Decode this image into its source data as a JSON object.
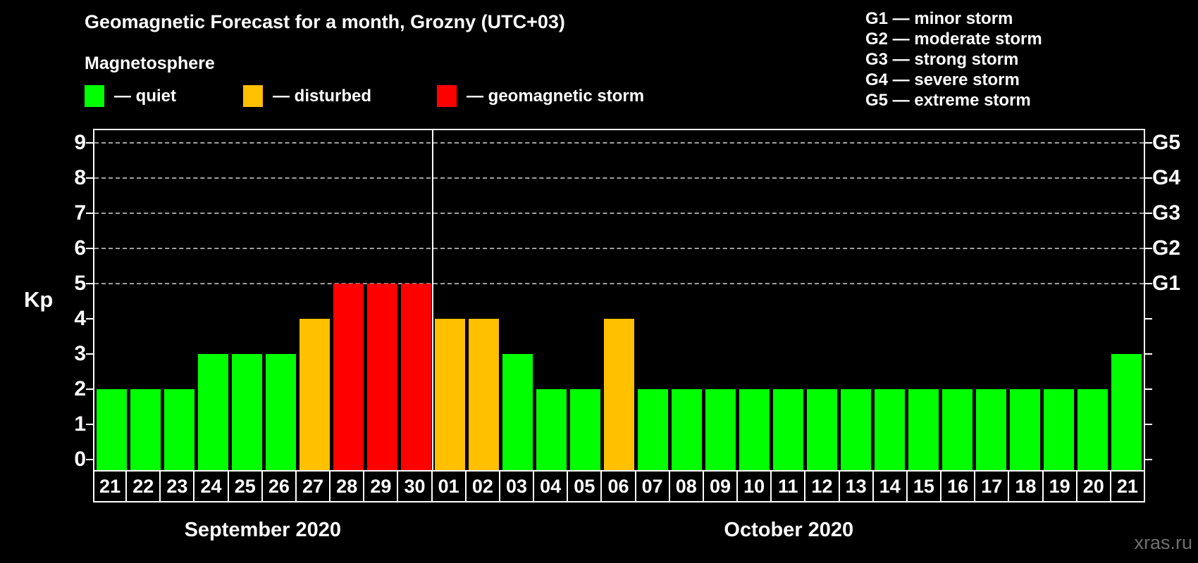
{
  "title": "Geomagnetic Forecast for a month, Grozny (UTC+03)",
  "subtitle": "Magnetosphere",
  "watermark": "xras.ru",
  "legend": [
    {
      "key": "quiet",
      "label": "— quiet"
    },
    {
      "key": "disturbed",
      "label": "— disturbed"
    },
    {
      "key": "storm",
      "label": "— geomagnetic storm"
    }
  ],
  "g_legend": [
    "G1 — minor storm",
    "G2 — moderate storm",
    "G3 — strong storm",
    "G4 — severe storm",
    "G5 — extreme storm"
  ],
  "colors": {
    "quiet": "#00ff00",
    "disturbed": "#ffc000",
    "storm": "#ff0000",
    "background": "#000000",
    "text": "#ffffff",
    "gridline": "#a0a0a0"
  },
  "chart_data": {
    "type": "bar",
    "title": "Geomagnetic Forecast for a month, Grozny (UTC+03)",
    "ylabel": "Kp",
    "ylim": [
      0,
      9
    ],
    "y_ticks": [
      0,
      1,
      2,
      3,
      4,
      5,
      6,
      7,
      8,
      9
    ],
    "gridlines_at": [
      5,
      6,
      7,
      8,
      9
    ],
    "grid_style": "dashed, only at storm levels",
    "right_axis_labels": {
      "5": "G1",
      "6": "G2",
      "7": "G3",
      "8": "G4",
      "9": "G5"
    },
    "legend_position": "top-left",
    "months": [
      {
        "name": "September 2020",
        "days": [
          {
            "day": "21",
            "kp": 2,
            "status": "quiet"
          },
          {
            "day": "22",
            "kp": 2,
            "status": "quiet"
          },
          {
            "day": "23",
            "kp": 2,
            "status": "quiet"
          },
          {
            "day": "24",
            "kp": 3,
            "status": "quiet"
          },
          {
            "day": "25",
            "kp": 3,
            "status": "quiet"
          },
          {
            "day": "26",
            "kp": 3,
            "status": "quiet"
          },
          {
            "day": "27",
            "kp": 4,
            "status": "disturbed"
          },
          {
            "day": "28",
            "kp": 5,
            "status": "storm"
          },
          {
            "day": "29",
            "kp": 5,
            "status": "storm"
          },
          {
            "day": "30",
            "kp": 5,
            "status": "storm"
          }
        ]
      },
      {
        "name": "October 2020",
        "days": [
          {
            "day": "01",
            "kp": 4,
            "status": "disturbed"
          },
          {
            "day": "02",
            "kp": 4,
            "status": "disturbed"
          },
          {
            "day": "03",
            "kp": 3,
            "status": "quiet"
          },
          {
            "day": "04",
            "kp": 2,
            "status": "quiet"
          },
          {
            "day": "05",
            "kp": 2,
            "status": "quiet"
          },
          {
            "day": "06",
            "kp": 4,
            "status": "disturbed"
          },
          {
            "day": "07",
            "kp": 2,
            "status": "quiet"
          },
          {
            "day": "08",
            "kp": 2,
            "status": "quiet"
          },
          {
            "day": "09",
            "kp": 2,
            "status": "quiet"
          },
          {
            "day": "10",
            "kp": 2,
            "status": "quiet"
          },
          {
            "day": "11",
            "kp": 2,
            "status": "quiet"
          },
          {
            "day": "12",
            "kp": 2,
            "status": "quiet"
          },
          {
            "day": "13",
            "kp": 2,
            "status": "quiet"
          },
          {
            "day": "14",
            "kp": 2,
            "status": "quiet"
          },
          {
            "day": "15",
            "kp": 2,
            "status": "quiet"
          },
          {
            "day": "16",
            "kp": 2,
            "status": "quiet"
          },
          {
            "day": "17",
            "kp": 2,
            "status": "quiet"
          },
          {
            "day": "18",
            "kp": 2,
            "status": "quiet"
          },
          {
            "day": "19",
            "kp": 2,
            "status": "quiet"
          },
          {
            "day": "20",
            "kp": 2,
            "status": "quiet"
          },
          {
            "day": "21",
            "kp": 3,
            "status": "quiet"
          }
        ]
      }
    ]
  }
}
